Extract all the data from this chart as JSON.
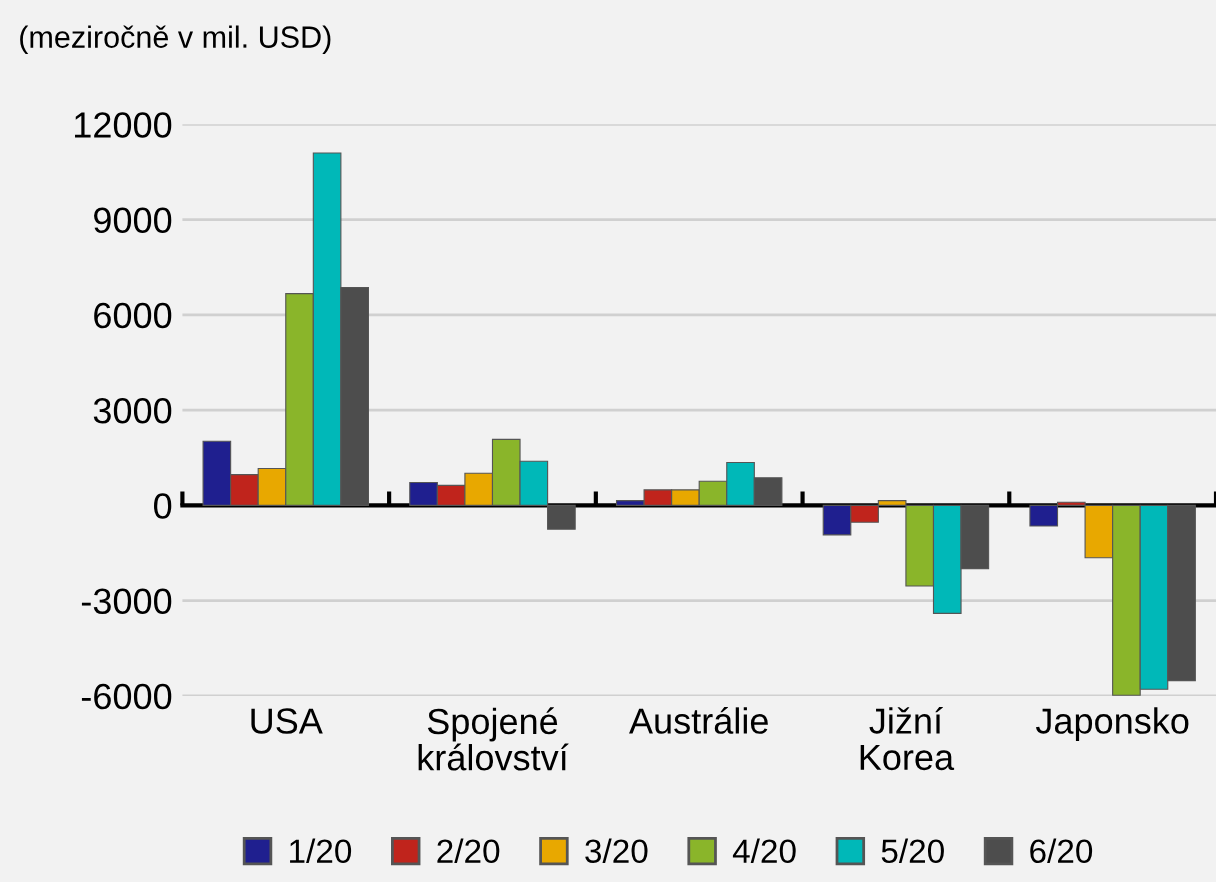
{
  "chart_data": {
    "type": "bar",
    "title": "(meziročně v mil. USD)",
    "categories": [
      "USA",
      "Spojené\nkrálovství",
      "Austrálie",
      "Jižní\nKorea",
      "Japonsko"
    ],
    "series": [
      {
        "name": "1/20",
        "color": "#1f1f8f",
        "values": [
          2020,
          720,
          150,
          -930,
          -650
        ]
      },
      {
        "name": "2/20",
        "color": "#c0241c",
        "values": [
          970,
          630,
          490,
          -530,
          100
        ]
      },
      {
        "name": "3/20",
        "color": "#e8a800",
        "values": [
          1160,
          1010,
          490,
          150,
          -1650
        ]
      },
      {
        "name": "4/20",
        "color": "#8ab52a",
        "values": [
          6670,
          2080,
          760,
          -2540,
          -5980
        ]
      },
      {
        "name": "5/20",
        "color": "#00b8b8",
        "values": [
          11100,
          1390,
          1350,
          -3400,
          -5790
        ]
      },
      {
        "name": "6/20",
        "color": "#4d4d4d",
        "values": [
          6860,
          -750,
          870,
          -1990,
          -5520
        ]
      }
    ],
    "ylim": [
      -6000,
      12000
    ],
    "yticks": [
      -6000,
      -3000,
      0,
      3000,
      6000,
      9000,
      12000
    ],
    "grid": "y",
    "legend": "bottom"
  }
}
